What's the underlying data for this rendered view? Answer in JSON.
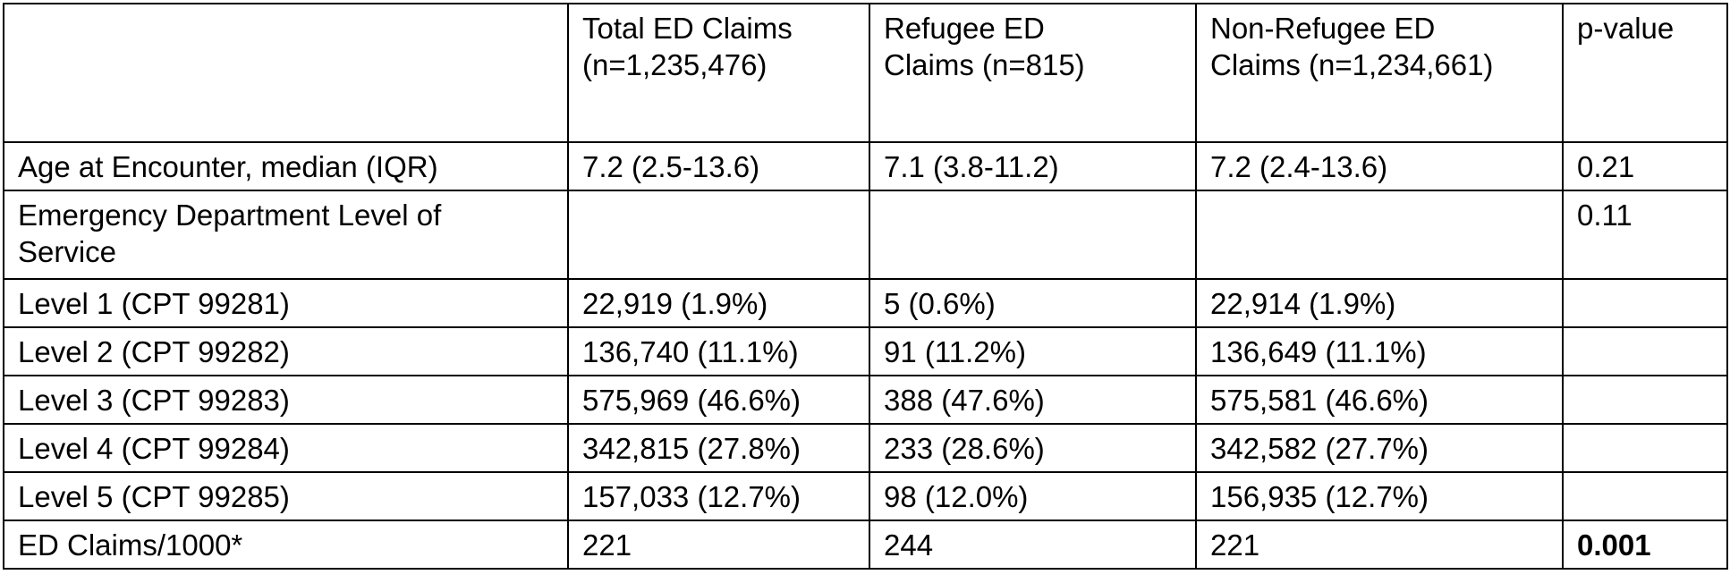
{
  "table": {
    "headers": [
      "",
      "Total ED Claims (n=1,235,476)",
      "Refugee ED Claims (n=815)",
      "Non-Refugee ED Claims (n=1,234,661)",
      "p-value"
    ],
    "rows": [
      [
        "Age at Encounter, median (IQR)",
        "7.2 (2.5-13.6)",
        "7.1 (3.8-11.2)",
        "7.2 (2.4-13.6)",
        "0.21"
      ],
      [
        "Emergency Department Level of Service",
        "",
        "",
        "",
        "0.11"
      ],
      [
        "Level 1 (CPT 99281)",
        "22,919 (1.9%)",
        "5 (0.6%)",
        "22,914 (1.9%)",
        ""
      ],
      [
        "Level 2 (CPT 99282)",
        "136,740 (11.1%)",
        "91 (11.2%)",
        "136,649 (11.1%)",
        ""
      ],
      [
        "Level 3 (CPT 99283)",
        "575,969 (46.6%)",
        "388 (47.6%)",
        "575,581 (46.6%)",
        ""
      ],
      [
        "Level 4 (CPT 99284)",
        "342,815 (27.8%)",
        "233 (28.6%)",
        "342,582 (27.7%)",
        ""
      ],
      [
        "Level 5 (CPT 99285)",
        "157,033 (12.7%)",
        "98 (12.0%)",
        "156,935 (12.7%)",
        ""
      ],
      [
        "ED Claims/1000*",
        "221",
        "244",
        "221",
        "0.001"
      ]
    ]
  }
}
